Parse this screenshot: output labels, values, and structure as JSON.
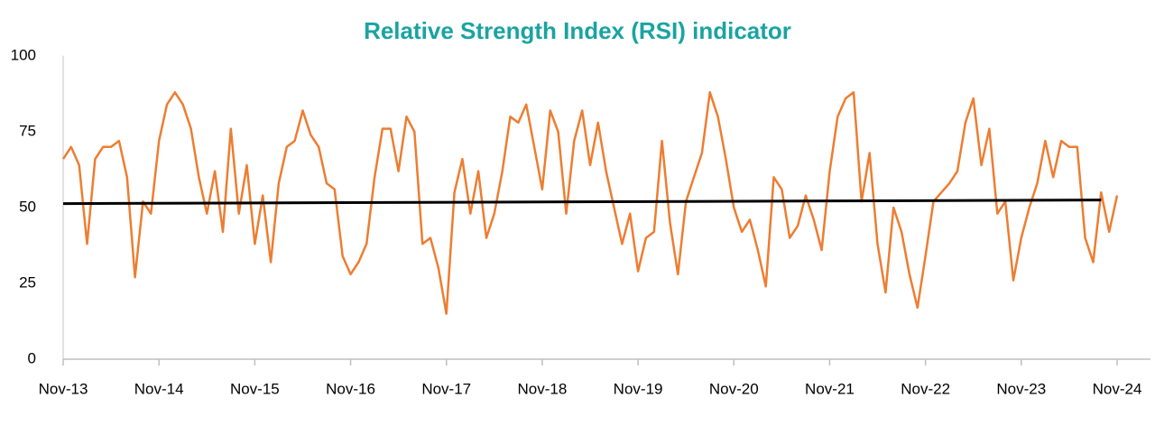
{
  "chart_data": {
    "type": "line",
    "title": "Relative Strength Index (RSI) indicator",
    "categories": [
      "Nov-13",
      null,
      null,
      null,
      null,
      null,
      null,
      null,
      null,
      null,
      null,
      null,
      "Nov-14",
      null,
      null,
      null,
      null,
      null,
      null,
      null,
      null,
      null,
      null,
      null,
      "Nov-15",
      null,
      null,
      null,
      null,
      null,
      null,
      null,
      null,
      null,
      null,
      null,
      "Nov-16",
      null,
      null,
      null,
      null,
      null,
      null,
      null,
      null,
      null,
      null,
      null,
      "Nov-17",
      null,
      null,
      null,
      null,
      null,
      null,
      null,
      null,
      null,
      null,
      null,
      "Nov-18",
      null,
      null,
      null,
      null,
      null,
      null,
      null,
      null,
      null,
      null,
      null,
      "Nov-19",
      null,
      null,
      null,
      null,
      null,
      null,
      null,
      null,
      null,
      null,
      null,
      "Nov-20",
      null,
      null,
      null,
      null,
      null,
      null,
      null,
      null,
      null,
      null,
      null,
      "Nov-21",
      null,
      null,
      null,
      null,
      null,
      null,
      null,
      null,
      null,
      null,
      null,
      "Nov-22",
      null,
      null,
      null,
      null,
      null,
      null,
      null,
      null,
      null,
      null,
      null,
      "Nov-23",
      null,
      null,
      null,
      null,
      null,
      null,
      null,
      null,
      null,
      null,
      null,
      "Nov-24"
    ],
    "series": [
      {
        "color": "#ed7d31",
        "values": [
          66,
          70,
          64,
          38,
          66,
          70,
          70,
          72,
          60,
          27,
          52,
          48,
          72,
          84,
          88,
          84,
          76,
          60,
          48,
          62,
          42,
          76,
          48,
          64,
          38,
          54,
          32,
          58,
          70,
          72,
          82,
          74,
          70,
          58,
          56,
          34,
          28,
          32,
          38,
          60,
          76,
          76,
          62,
          80,
          75,
          38,
          40,
          30,
          15,
          55,
          66,
          48,
          62,
          40,
          48,
          62,
          80,
          78,
          84,
          70,
          56,
          82,
          75,
          48,
          72,
          82,
          64,
          78,
          62,
          50,
          38,
          48,
          29,
          40,
          42,
          72,
          45,
          28,
          52,
          60,
          68,
          88,
          80,
          66,
          50,
          42,
          46,
          36,
          24,
          60,
          56,
          40,
          44,
          54,
          46,
          36,
          62,
          80,
          86,
          88,
          52,
          68,
          38,
          22,
          50,
          42,
          28,
          17,
          34,
          52,
          55,
          58,
          62,
          78,
          86,
          64,
          76,
          48,
          52,
          26,
          40,
          50,
          58,
          72,
          60,
          72,
          70,
          70,
          40,
          32,
          55,
          42,
          54
        ]
      }
    ],
    "trendline": {
      "color": "#000000",
      "x": [
        0,
        130
      ],
      "values": [
        51.3,
        52.5
      ]
    },
    "ylim": [
      0,
      100
    ],
    "yticks": [
      0,
      25,
      50,
      75,
      100
    ],
    "grid": false
  }
}
